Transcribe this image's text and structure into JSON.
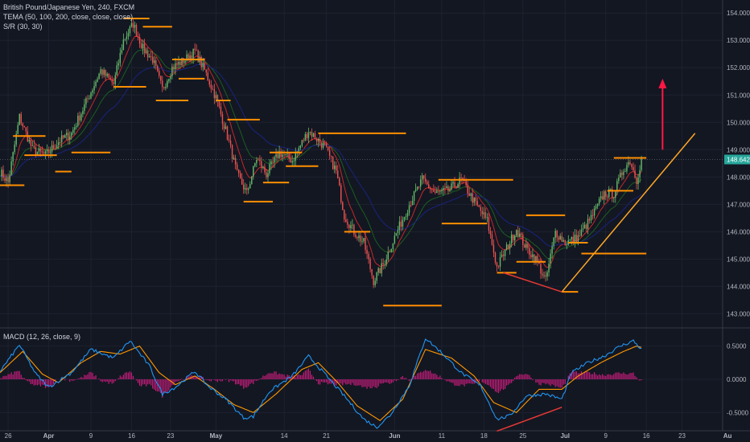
{
  "legend": {
    "title": "British Pound/Japanese Yen, 240, FXCM",
    "tema": "TEMA (50, 100, 200, close, close, close)",
    "sr": "S/R (30, 30)",
    "macd": "MACD (12, 26, close, 9)"
  },
  "last_price": "148.642",
  "colors": {
    "background": "#131722",
    "grid": "#1e2230",
    "up_candle": "#66bb6a",
    "down_candle": "#ef5350",
    "sr_level": "#ff8f00",
    "trendline": "#ffa726",
    "divergence": "#e53935",
    "arrow": "#ff1744",
    "tema_fast": "#c62828",
    "tema_mid": "#1b5e20",
    "tema_slow": "#1a237e",
    "macd_line": "#2196f3",
    "signal_line": "#ff9800",
    "histogram": "#e91e8c"
  },
  "chart_data": [
    {
      "type": "candlestick",
      "title": "British Pound/Japanese Yen, 240, FXCM",
      "ylim": [
        142.6,
        154.3
      ],
      "y_ticks": [
        "154.000",
        "153.000",
        "152.000",
        "151.000",
        "150.000",
        "149.000",
        "148.000",
        "147.000",
        "146.000",
        "145.000",
        "144.000",
        "143.000"
      ],
      "x_ticks": [
        "26",
        "Apr",
        "9",
        "16",
        "23",
        "May",
        "14",
        "21",
        "Jun",
        "11",
        "18",
        "25",
        "Jul",
        "9",
        "16",
        "23",
        "Au"
      ],
      "x_index_range": [
        0,
        445
      ],
      "last_index": 395,
      "x_tick_index": [
        5,
        30,
        56,
        81,
        105,
        133,
        175,
        201,
        243,
        272,
        298,
        322,
        348,
        373,
        398,
        420,
        448
      ],
      "close_anchors": [
        [
          0,
          148.2
        ],
        [
          5,
          147.8
        ],
        [
          12,
          150.2
        ],
        [
          20,
          149.0
        ],
        [
          28,
          148.8
        ],
        [
          36,
          149.3
        ],
        [
          44,
          149.6
        ],
        [
          52,
          150.6
        ],
        [
          62,
          151.9
        ],
        [
          70,
          151.4
        ],
        [
          76,
          153.0
        ],
        [
          82,
          153.6
        ],
        [
          88,
          152.7
        ],
        [
          94,
          152.3
        ],
        [
          100,
          151.2
        ],
        [
          106,
          152.0
        ],
        [
          114,
          152.3
        ],
        [
          120,
          152.6
        ],
        [
          126,
          151.9
        ],
        [
          133,
          150.9
        ],
        [
          140,
          149.5
        ],
        [
          146,
          148.1
        ],
        [
          152,
          147.4
        ],
        [
          158,
          148.7
        ],
        [
          164,
          148.1
        ],
        [
          172,
          148.9
        ],
        [
          180,
          148.6
        ],
        [
          190,
          149.7
        ],
        [
          200,
          149.1
        ],
        [
          207,
          148.2
        ],
        [
          212,
          146.6
        ],
        [
          218,
          146.0
        ],
        [
          224,
          145.6
        ],
        [
          230,
          144.2
        ],
        [
          236,
          144.8
        ],
        [
          243,
          145.8
        ],
        [
          252,
          147.0
        ],
        [
          260,
          147.9
        ],
        [
          268,
          147.4
        ],
        [
          276,
          147.5
        ],
        [
          284,
          147.9
        ],
        [
          292,
          147.1
        ],
        [
          300,
          146.4
        ],
        [
          306,
          144.7
        ],
        [
          312,
          145.4
        ],
        [
          318,
          146.1
        ],
        [
          324,
          145.4
        ],
        [
          330,
          145.0
        ],
        [
          336,
          144.2
        ],
        [
          342,
          146.0
        ],
        [
          348,
          145.6
        ],
        [
          356,
          145.8
        ],
        [
          364,
          146.5
        ],
        [
          372,
          147.4
        ],
        [
          378,
          147.4
        ],
        [
          384,
          148.3
        ],
        [
          388,
          148.6
        ],
        [
          392,
          147.9
        ],
        [
          395,
          148.64
        ]
      ],
      "support_resistance": [
        {
          "from": 0,
          "to": 15,
          "y": 147.7
        },
        {
          "from": 8,
          "to": 28,
          "y": 149.5
        },
        {
          "from": 15,
          "to": 35,
          "y": 148.8
        },
        {
          "from": 34,
          "to": 44,
          "y": 148.2
        },
        {
          "from": 44,
          "to": 68,
          "y": 148.9
        },
        {
          "from": 76,
          "to": 92,
          "y": 153.8
        },
        {
          "from": 88,
          "to": 106,
          "y": 153.5
        },
        {
          "from": 70,
          "to": 90,
          "y": 151.3
        },
        {
          "from": 96,
          "to": 116,
          "y": 150.8
        },
        {
          "from": 110,
          "to": 126,
          "y": 151.6
        },
        {
          "from": 106,
          "to": 126,
          "y": 152.3
        },
        {
          "from": 133,
          "to": 142,
          "y": 150.8
        },
        {
          "from": 140,
          "to": 160,
          "y": 150.1
        },
        {
          "from": 150,
          "to": 168,
          "y": 147.1
        },
        {
          "from": 162,
          "to": 178,
          "y": 147.8
        },
        {
          "from": 166,
          "to": 186,
          "y": 148.9
        },
        {
          "from": 176,
          "to": 196,
          "y": 148.4
        },
        {
          "from": 196,
          "to": 250,
          "y": 149.6
        },
        {
          "from": 212,
          "to": 228,
          "y": 146.0
        },
        {
          "from": 236,
          "to": 272,
          "y": 143.3
        },
        {
          "from": 270,
          "to": 316,
          "y": 147.9
        },
        {
          "from": 272,
          "to": 300,
          "y": 146.3
        },
        {
          "from": 306,
          "to": 318,
          "y": 144.5
        },
        {
          "from": 318,
          "to": 336,
          "y": 144.9
        },
        {
          "from": 324,
          "to": 348,
          "y": 146.6
        },
        {
          "from": 346,
          "to": 356,
          "y": 143.8
        },
        {
          "from": 350,
          "to": 362,
          "y": 145.6
        },
        {
          "from": 358,
          "to": 398,
          "y": 145.2
        },
        {
          "from": 378,
          "to": 398,
          "y": 148.7
        },
        {
          "from": 374,
          "to": 390,
          "y": 147.5
        }
      ],
      "trendline": {
        "from": [
          346,
          143.8
        ],
        "to": [
          428,
          149.6
        ]
      },
      "divergence_price": {
        "from": [
          310,
          144.5
        ],
        "to": [
          346,
          143.8
        ]
      },
      "arrow": {
        "x": 408,
        "from": 149.0,
        "to": 151.6
      }
    },
    {
      "type": "line",
      "title": "MACD (12, 26, close, 9)",
      "ylim": [
        -0.75,
        0.75
      ],
      "y_ticks": [
        "0.5000",
        "0.0000",
        "-0.5000"
      ],
      "series": [
        {
          "name": "MACD",
          "anchors": [
            [
              0,
              0.12
            ],
            [
              12,
              0.52
            ],
            [
              22,
              0.08
            ],
            [
              30,
              -0.12
            ],
            [
              44,
              0.1
            ],
            [
              56,
              0.45
            ],
            [
              70,
              0.32
            ],
            [
              80,
              0.58
            ],
            [
              92,
              0.2
            ],
            [
              100,
              -0.22
            ],
            [
              108,
              -0.12
            ],
            [
              120,
              0.12
            ],
            [
              128,
              -0.1
            ],
            [
              140,
              -0.32
            ],
            [
              150,
              -0.58
            ],
            [
              156,
              -0.56
            ],
            [
              166,
              -0.18
            ],
            [
              180,
              0.05
            ],
            [
              190,
              0.35
            ],
            [
              200,
              0.08
            ],
            [
              212,
              -0.25
            ],
            [
              224,
              -0.6
            ],
            [
              232,
              -0.72
            ],
            [
              240,
              -0.55
            ],
            [
              252,
              -0.1
            ],
            [
              262,
              0.62
            ],
            [
              272,
              0.4
            ],
            [
              284,
              0.1
            ],
            [
              296,
              -0.1
            ],
            [
              306,
              -0.6
            ],
            [
              314,
              -0.55
            ],
            [
              324,
              -0.25
            ],
            [
              336,
              -0.22
            ],
            [
              346,
              -0.3
            ],
            [
              352,
              0.1
            ],
            [
              362,
              0.25
            ],
            [
              372,
              0.35
            ],
            [
              382,
              0.5
            ],
            [
              390,
              0.58
            ],
            [
              395,
              0.45
            ]
          ]
        },
        {
          "name": "Signal",
          "anchors": [
            [
              0,
              0.1
            ],
            [
              14,
              0.42
            ],
            [
              26,
              0.08
            ],
            [
              36,
              -0.05
            ],
            [
              50,
              0.25
            ],
            [
              62,
              0.42
            ],
            [
              74,
              0.38
            ],
            [
              86,
              0.5
            ],
            [
              98,
              0.1
            ],
            [
              108,
              -0.08
            ],
            [
              120,
              0.05
            ],
            [
              132,
              -0.15
            ],
            [
              144,
              -0.38
            ],
            [
              156,
              -0.5
            ],
            [
              170,
              -0.22
            ],
            [
              186,
              0.15
            ],
            [
              196,
              0.25
            ],
            [
              208,
              -0.05
            ],
            [
              220,
              -0.4
            ],
            [
              234,
              -0.62
            ],
            [
              248,
              -0.3
            ],
            [
              262,
              0.45
            ],
            [
              278,
              0.32
            ],
            [
              292,
              0.05
            ],
            [
              304,
              -0.35
            ],
            [
              318,
              -0.5
            ],
            [
              332,
              -0.15
            ],
            [
              346,
              -0.15
            ],
            [
              356,
              0.05
            ],
            [
              370,
              0.25
            ],
            [
              384,
              0.42
            ],
            [
              392,
              0.5
            ],
            [
              395,
              0.48
            ]
          ]
        }
      ],
      "divergence_macd": {
        "from": [
          306,
          -0.78
        ],
        "to": [
          346,
          -0.42
        ]
      }
    }
  ]
}
